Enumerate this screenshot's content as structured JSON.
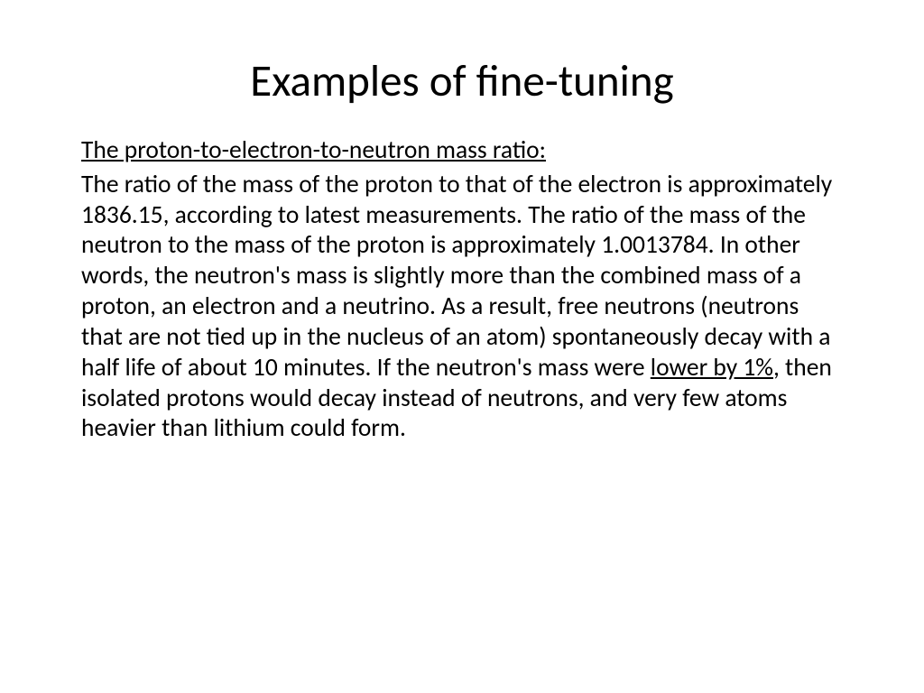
{
  "slide": {
    "title": "Examples of fine-tuning",
    "subtitle": "The proton-to-electron-to-neutron mass ratio:",
    "body_pre": "The ratio of the mass of the proton to that of the electron is approximately 1836.15, according to latest measurements. The ratio of the mass of the neutron to the mass of the proton is approximately 1.0013784. In other words, the neutron's mass is slightly more than the combined mass of a proton, an electron and a neutrino. As a result, free neutrons (neutrons that are not tied up in the nucleus of an atom) spontaneously decay with a half life of about 10 minutes. If the neutron's mass were ",
    "body_underlined": "lower by 1%",
    "body_post": ", then isolated protons would decay instead of neutrons, and very few atoms heavier than lithium could form."
  },
  "style": {
    "background_color": "#ffffff",
    "text_color": "#000000",
    "title_fontsize": 49,
    "body_fontsize": 27.5,
    "font_family": "Calibri"
  }
}
